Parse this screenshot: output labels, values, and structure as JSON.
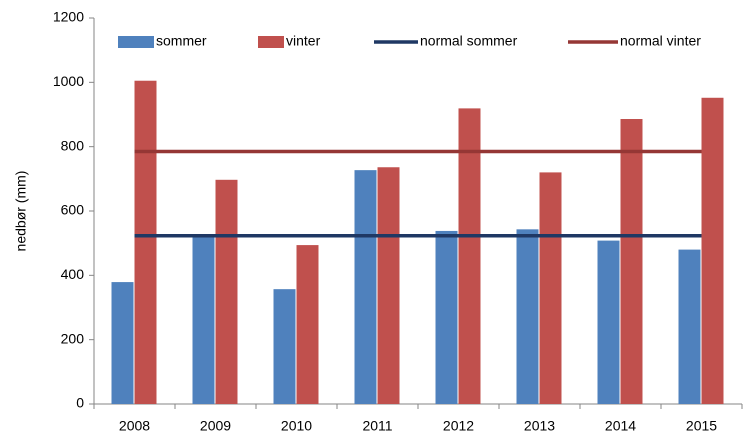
{
  "chart_data": {
    "type": "bar",
    "y_label": "nedbør (mm)",
    "categories": [
      "2008",
      "2009",
      "2010",
      "2011",
      "2012",
      "2013",
      "2014",
      "2015"
    ],
    "series": [
      {
        "name": "sommer",
        "type": "bar",
        "color": "#4f81bd",
        "values": [
          379,
          525,
          357,
          727,
          538,
          543,
          508,
          480
        ]
      },
      {
        "name": "vinter",
        "type": "bar",
        "color": "#c0504d",
        "values": [
          1005,
          697,
          494,
          736,
          919,
          720,
          886,
          952
        ]
      },
      {
        "name": "normal sommer",
        "type": "line",
        "color": "#1f3864",
        "values": [
          523,
          523,
          523,
          523,
          523,
          523,
          523,
          523
        ]
      },
      {
        "name": "normal vinter",
        "type": "line",
        "color": "#953735",
        "values": [
          785,
          785,
          785,
          785,
          785,
          785,
          785,
          785
        ]
      }
    ],
    "ylim": [
      0,
      1200
    ],
    "yticks": [
      0,
      200,
      400,
      600,
      800,
      1000,
      1200
    ],
    "legend": "top"
  }
}
